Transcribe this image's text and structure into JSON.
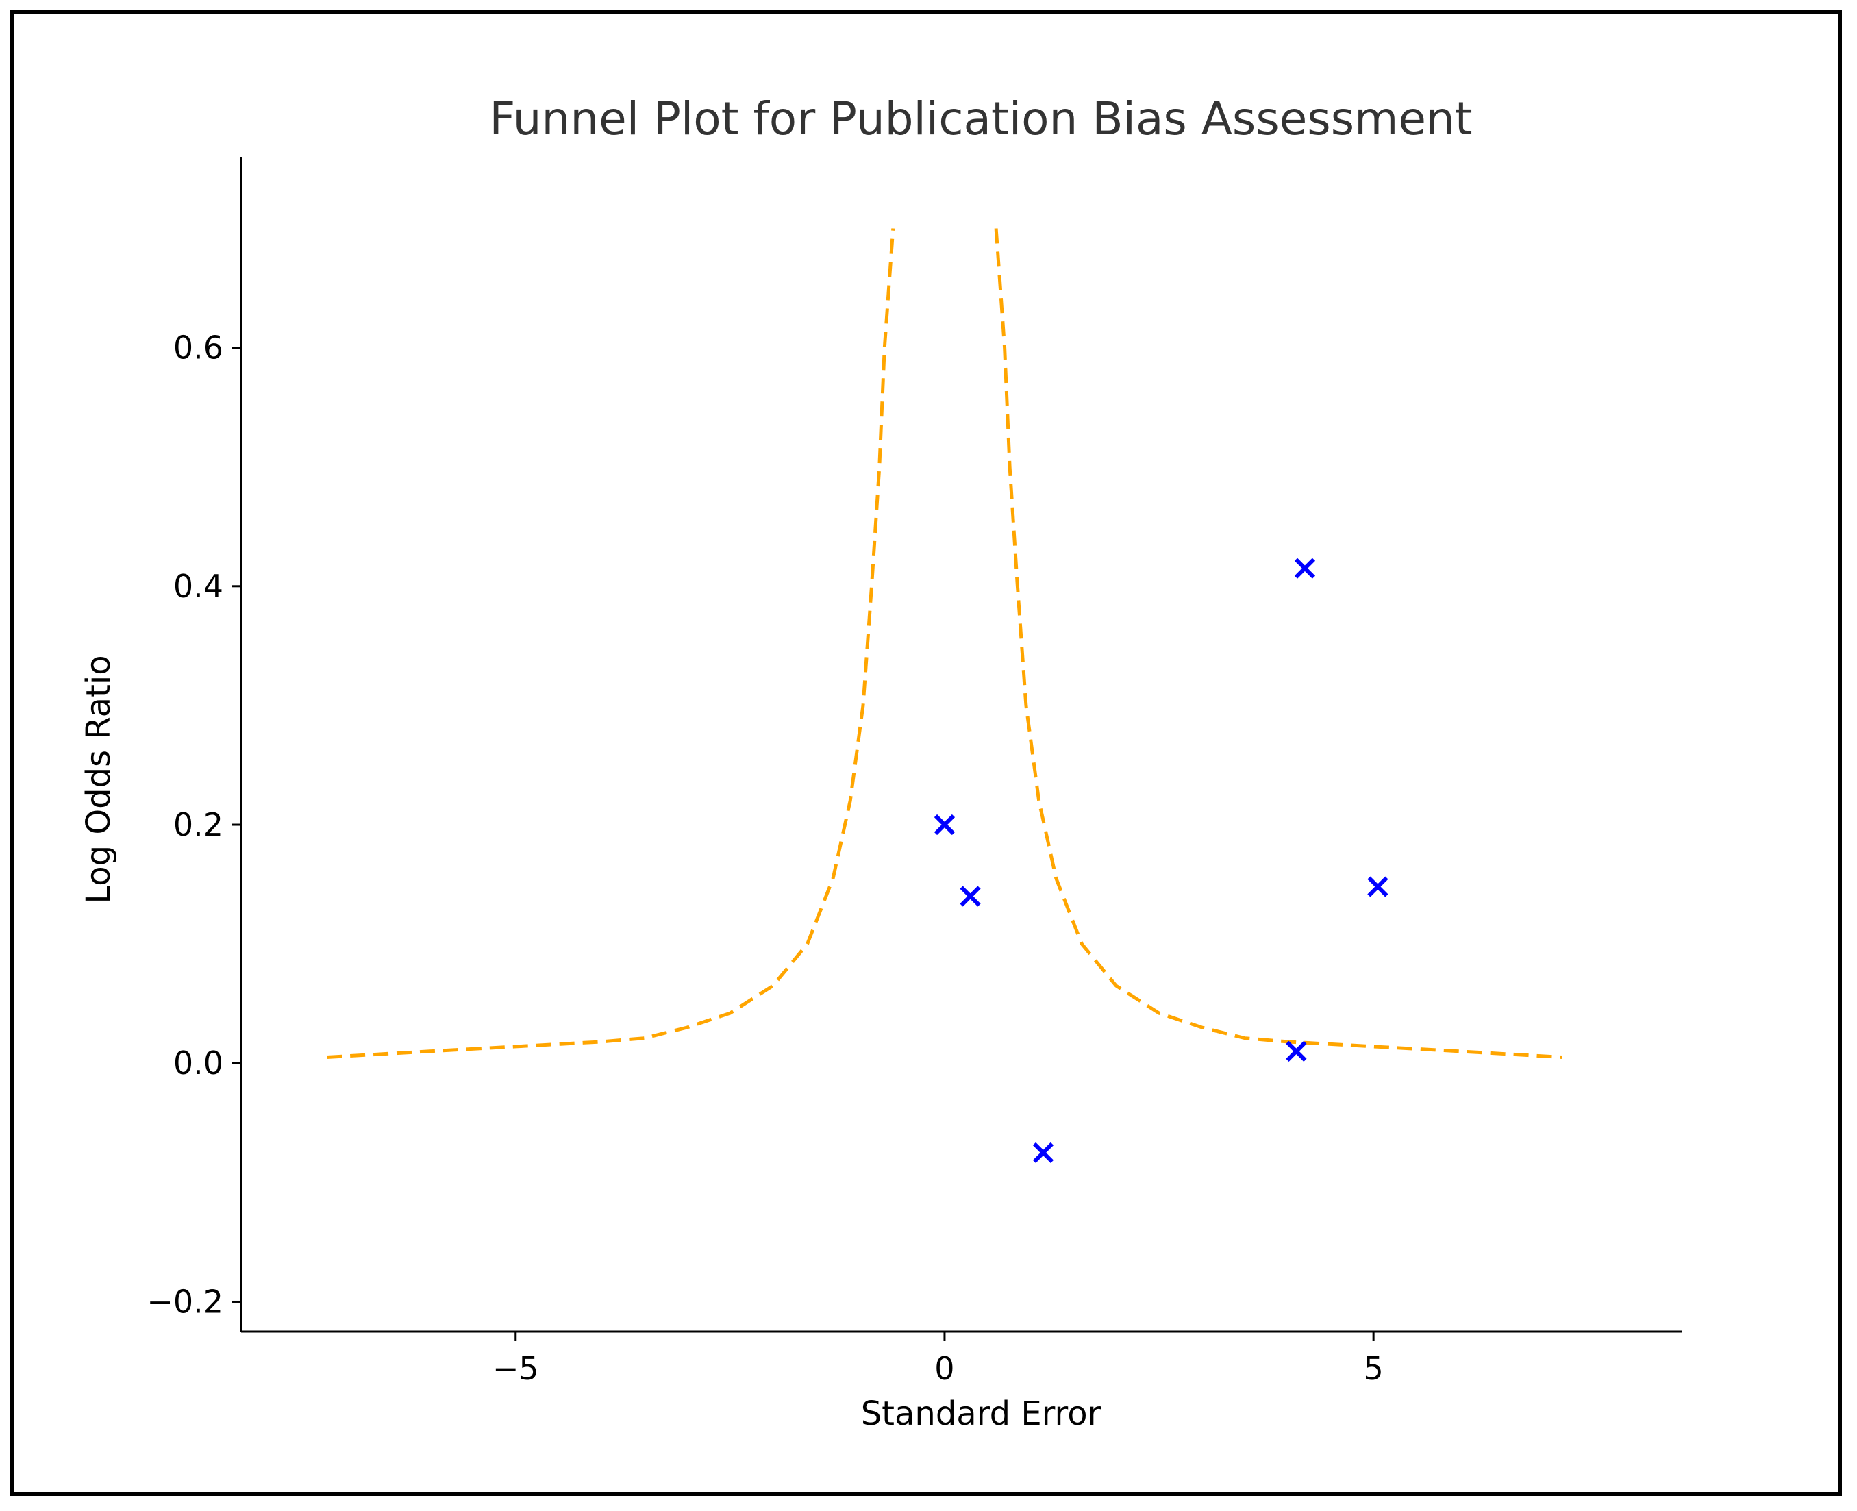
{
  "chart_data": {
    "type": "scatter",
    "title": "Funnel Plot for Publication Bias Assessment",
    "xlabel": "Standard Error",
    "ylabel": "Log Odds Ratio",
    "xlim": [
      -8.2,
      8.6
    ],
    "ylim": [
      -0.225,
      0.76
    ],
    "xticks": [
      -5,
      0,
      5
    ],
    "xtick_labels": [
      "−5",
      "0",
      "5"
    ],
    "yticks": [
      -0.2,
      0.0,
      0.2,
      0.4,
      0.6
    ],
    "ytick_labels": [
      "−0.2",
      "0.0",
      "0.2",
      "0.4",
      "0.6"
    ],
    "grid": false,
    "points": {
      "marker": "x",
      "color": "#0000ff",
      "x": [
        0.0,
        0.3,
        1.15,
        4.2,
        5.05,
        4.1
      ],
      "y": [
        0.2,
        0.14,
        -0.075,
        0.415,
        0.148,
        0.01
      ]
    },
    "funnel": {
      "color": "#ffa500",
      "line_style": "dashed",
      "left": {
        "x": [
          -7.2,
          -6.0,
          -5.0,
          -4.0,
          -3.5,
          -3.0,
          -2.5,
          -2.0,
          -1.6,
          -1.3,
          -1.1,
          -0.95,
          -0.85,
          -0.76,
          -0.7,
          -0.62,
          -0.6
        ],
        "y": [
          0.005,
          0.01,
          0.014,
          0.018,
          0.021,
          0.03,
          0.042,
          0.065,
          0.1,
          0.155,
          0.22,
          0.3,
          0.4,
          0.5,
          0.6,
          0.68,
          0.7
        ]
      },
      "right": {
        "x": [
          0.6,
          0.62,
          0.7,
          0.76,
          0.85,
          0.95,
          1.1,
          1.3,
          1.6,
          2.0,
          2.5,
          3.0,
          3.5,
          4.0,
          5.0,
          6.0,
          7.2
        ],
        "y": [
          0.7,
          0.68,
          0.6,
          0.5,
          0.4,
          0.3,
          0.22,
          0.155,
          0.1,
          0.065,
          0.042,
          0.03,
          0.021,
          0.018,
          0.014,
          0.01,
          0.005
        ]
      }
    }
  }
}
